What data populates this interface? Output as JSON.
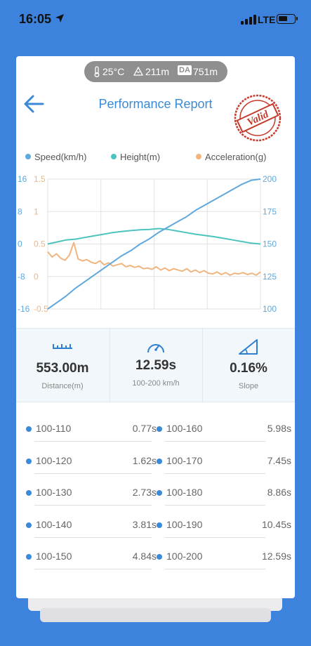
{
  "status_bar": {
    "time": "16:05",
    "network": "LTE"
  },
  "env": {
    "temperature": "25°C",
    "altitude": "211m",
    "da_label": "DA",
    "density_altitude": "751m"
  },
  "header": {
    "title": "Performance Report",
    "stamp_text": "Valid"
  },
  "legend": [
    {
      "label": "Speed(km/h)",
      "color": "#5fa8de"
    },
    {
      "label": "Height(m)",
      "color": "#4cc4bd"
    },
    {
      "label": "Acceleration(g)",
      "color": "#f0b57e"
    }
  ],
  "chart_data": {
    "type": "line",
    "series": [
      {
        "name": "Speed(km/h)",
        "axis": "right",
        "color": "#5fa8de",
        "y": [
          100,
          105,
          110,
          116,
          121,
          126,
          131,
          136,
          141,
          145,
          150,
          154,
          159,
          163,
          167,
          171,
          176,
          180,
          184,
          188,
          192,
          196,
          199,
          200
        ]
      },
      {
        "name": "Height(m)",
        "axis": "left_outer",
        "color": "#4cc4bd",
        "y": [
          0,
          0.5,
          1,
          1.2,
          1.6,
          2,
          2.4,
          2.8,
          3.1,
          3.3,
          3.5,
          3.6,
          3.8,
          3.6,
          3.2,
          2.8,
          2.4,
          2.1,
          1.8,
          1.4,
          1.0,
          0.6,
          0.2,
          0
        ]
      },
      {
        "name": "Acceleration(g)",
        "axis": "left_inner",
        "color": "#f0b57e",
        "y": [
          0.38,
          0.3,
          0.35,
          0.28,
          0.25,
          0.33,
          0.52,
          0.27,
          0.24,
          0.26,
          0.22,
          0.2,
          0.24,
          0.18,
          0.21,
          0.16,
          0.18,
          0.2,
          0.15,
          0.17,
          0.14,
          0.16,
          0.12,
          0.13,
          0.11,
          0.15,
          0.1,
          0.13,
          0.09,
          0.12,
          0.1,
          0.08,
          0.12,
          0.07,
          0.1,
          0.06,
          0.09,
          0.05,
          0.04,
          0.07,
          0.03,
          0.06,
          0.02,
          0.05,
          0.04,
          0.06,
          0.03,
          0.05,
          0.02,
          0.07
        ]
      }
    ],
    "left_outer_ticks": [
      "16",
      "8",
      "0",
      "-8",
      "-16"
    ],
    "left_inner_ticks": [
      "1.5",
      "1",
      "0.5",
      "0",
      "-0.5"
    ],
    "right_ticks": [
      "200",
      "175",
      "150",
      "125",
      "100"
    ],
    "ylim_left_outer": [
      -16,
      16
    ],
    "ylim_left_inner": [
      -0.5,
      1.5
    ],
    "ylim_right": [
      100,
      200
    ],
    "grid": true
  },
  "stats": [
    {
      "value": "553.00m",
      "label": "Distance(m)",
      "icon": "ruler-icon"
    },
    {
      "value": "12.59s",
      "label": "100-200 km/h",
      "icon": "speedometer-icon"
    },
    {
      "value": "0.16%",
      "label": "Slope",
      "icon": "slope-icon"
    }
  ],
  "splits_left": [
    {
      "range": "100-110",
      "time": "0.77s"
    },
    {
      "range": "100-120",
      "time": "1.62s"
    },
    {
      "range": "100-130",
      "time": "2.73s"
    },
    {
      "range": "100-140",
      "time": "3.81s"
    },
    {
      "range": "100-150",
      "time": "4.84s"
    }
  ],
  "splits_right": [
    {
      "range": "100-160",
      "time": "5.98s"
    },
    {
      "range": "100-170",
      "time": "7.45s"
    },
    {
      "range": "100-180",
      "time": "8.86s"
    },
    {
      "range": "100-190",
      "time": "10.45s"
    },
    {
      "range": "100-200",
      "time": "12.59s"
    }
  ]
}
